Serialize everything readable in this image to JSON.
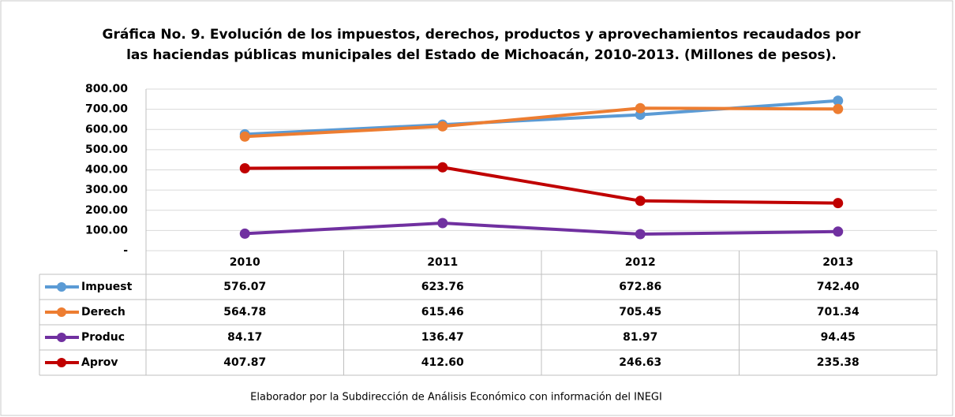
{
  "chart_data": {
    "type": "line",
    "title": [
      "Gráfica No. 9. Evolución de los impuestos, derechos, productos y aprovechamientos recaudados por",
      "las haciendas públicas municipales del Estado de Michoacán, 2010-2013. (Millones de pesos)."
    ],
    "categories": [
      "2010",
      "2011",
      "2012",
      "2013"
    ],
    "series": [
      {
        "name": "Impuest",
        "color": "#5b9bd5",
        "values": [
          576.07,
          623.76,
          672.86,
          742.4
        ],
        "value_labels": [
          "576.07",
          "623.76",
          "672.86",
          "742.40"
        ]
      },
      {
        "name": "Derech",
        "color": "#ed7d31",
        "values": [
          564.78,
          615.46,
          705.45,
          701.34
        ],
        "value_labels": [
          "564.78",
          "615.46",
          "705.45",
          "701.34"
        ]
      },
      {
        "name": "Produc",
        "color": "#7030a0",
        "values": [
          84.17,
          136.47,
          81.97,
          94.45
        ],
        "value_labels": [
          "84.17",
          "136.47",
          "81.97",
          "94.45"
        ]
      },
      {
        "name": "Aprov",
        "color": "#c00000",
        "values": [
          407.87,
          412.6,
          246.63,
          235.38
        ],
        "value_labels": [
          "407.87",
          "412.60",
          "246.63",
          "235.38"
        ]
      }
    ],
    "ylim": [
      0,
      800
    ],
    "yticks": [
      {
        "value": 0,
        "label": "-"
      },
      {
        "value": 100,
        "label": "100.00"
      },
      {
        "value": 200,
        "label": "200.00"
      },
      {
        "value": 300,
        "label": "300.00"
      },
      {
        "value": 400,
        "label": "400.00"
      },
      {
        "value": 500,
        "label": "500.00"
      },
      {
        "value": 600,
        "label": "600.00"
      },
      {
        "value": 700,
        "label": "700.00"
      },
      {
        "value": 800,
        "label": "800.00"
      }
    ],
    "grid": true,
    "source": "Elaborador por la Subdirección de Análisis Económico con información del INEGI"
  }
}
